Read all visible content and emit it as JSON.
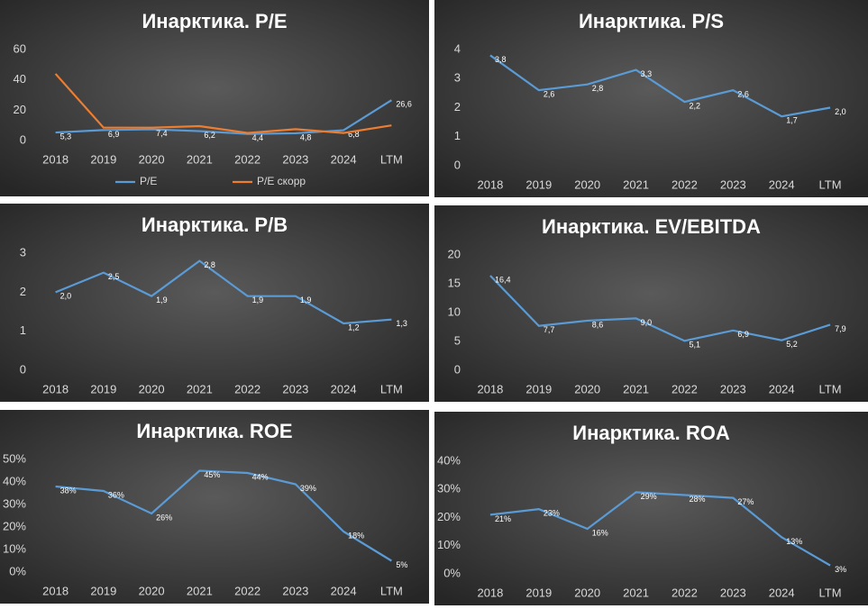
{
  "chart_data": [
    {
      "type": "line",
      "title": "Инарктика. P/E",
      "categories": [
        "2018",
        "2019",
        "2020",
        "2021",
        "2022",
        "2023",
        "2024",
        "LTM"
      ],
      "series": [
        {
          "name": "P/E",
          "color": "#5b9bd5",
          "values": [
            5.3,
            6.9,
            7.4,
            6.2,
            4.4,
            4.8,
            6.8,
            26.6
          ],
          "value_labels": [
            "5,3",
            "6,9",
            "7,4",
            "6,2",
            "4,4",
            "4,8",
            "6,8",
            "26,6"
          ]
        },
        {
          "name": "P/E скорр",
          "color": "#ed7d31",
          "values": [
            44,
            8.5,
            8.5,
            9.5,
            5,
            7.5,
            5,
            10
          ]
        }
      ],
      "ylim": [
        0,
        60
      ],
      "yticks": [
        0,
        20,
        40,
        60
      ],
      "legend": "bottom"
    },
    {
      "type": "line",
      "title": "Инарктика. P/S",
      "categories": [
        "2018",
        "2019",
        "2020",
        "2021",
        "2022",
        "2023",
        "2024",
        "LTM"
      ],
      "series": [
        {
          "name": "P/S",
          "color": "#5b9bd5",
          "values": [
            3.8,
            2.6,
            2.8,
            3.3,
            2.2,
            2.6,
            1.7,
            2.0
          ],
          "value_labels": [
            "3,8",
            "2,6",
            "2,8",
            "3,3",
            "2,2",
            "2,6",
            "1,7",
            "2,0"
          ]
        }
      ],
      "ylim": [
        0,
        4
      ],
      "yticks": [
        0,
        1,
        2,
        3,
        4
      ]
    },
    {
      "type": "line",
      "title": "Инарктика. P/B",
      "categories": [
        "2018",
        "2019",
        "2020",
        "2021",
        "2022",
        "2023",
        "2024",
        "LTM"
      ],
      "series": [
        {
          "name": "P/B",
          "color": "#5b9bd5",
          "values": [
            2.0,
            2.5,
            1.9,
            2.8,
            1.9,
            1.9,
            1.2,
            1.3
          ],
          "value_labels": [
            "2,0",
            "2,5",
            "1,9",
            "2,8",
            "1,9",
            "1,9",
            "1,2",
            "1,3"
          ]
        }
      ],
      "ylim": [
        0,
        3
      ],
      "yticks": [
        0,
        1,
        2,
        3
      ]
    },
    {
      "type": "line",
      "title": "Инарктика. EV/EBITDA",
      "categories": [
        "2018",
        "2019",
        "2020",
        "2021",
        "2022",
        "2023",
        "2024",
        "LTM"
      ],
      "series": [
        {
          "name": "EV/EBITDA",
          "color": "#5b9bd5",
          "values": [
            16.4,
            7.7,
            8.6,
            9.0,
            5.1,
            6.9,
            5.2,
            7.9
          ],
          "value_labels": [
            "16,4",
            "7,7",
            "8,6",
            "9,0",
            "5,1",
            "6,9",
            "5,2",
            "7,9"
          ]
        }
      ],
      "ylim": [
        0,
        20
      ],
      "yticks": [
        0,
        5,
        10,
        15,
        20
      ]
    },
    {
      "type": "line",
      "title": "Инарктика. ROE",
      "categories": [
        "2018",
        "2019",
        "2020",
        "2021",
        "2022",
        "2023",
        "2024",
        "LTM"
      ],
      "series": [
        {
          "name": "ROE",
          "color": "#5b9bd5",
          "values": [
            38,
            36,
            26,
            45,
            44,
            39,
            18,
            5
          ],
          "value_labels": [
            "38%",
            "36%",
            "26%",
            "45%",
            "44%",
            "39%",
            "18%",
            "5%"
          ]
        }
      ],
      "ylim": [
        0,
        50
      ],
      "yticks": [
        {
          "value": 0,
          "label": "0%"
        },
        {
          "value": 10,
          "label": "10%"
        },
        {
          "value": 20,
          "label": "20%"
        },
        {
          "value": 30,
          "label": "30%"
        },
        {
          "value": 40,
          "label": "40%"
        },
        {
          "value": 50,
          "label": "50%"
        }
      ]
    },
    {
      "type": "line",
      "title": "Инарктика. ROA",
      "categories": [
        "2018",
        "2019",
        "2020",
        "2021",
        "2022",
        "2023",
        "2024",
        "LTM"
      ],
      "series": [
        {
          "name": "ROA",
          "color": "#5b9bd5",
          "values": [
            21,
            23,
            16,
            29,
            28,
            27,
            13,
            3
          ],
          "value_labels": [
            "21%",
            "23%",
            "16%",
            "29%",
            "28%",
            "27%",
            "13%",
            "3%"
          ]
        }
      ],
      "ylim": [
        0,
        40
      ],
      "yticks": [
        {
          "value": 0,
          "label": "0%"
        },
        {
          "value": 10,
          "label": "10%"
        },
        {
          "value": 20,
          "label": "20%"
        },
        {
          "value": 30,
          "label": "30%"
        },
        {
          "value": 40,
          "label": "40%"
        }
      ]
    }
  ]
}
